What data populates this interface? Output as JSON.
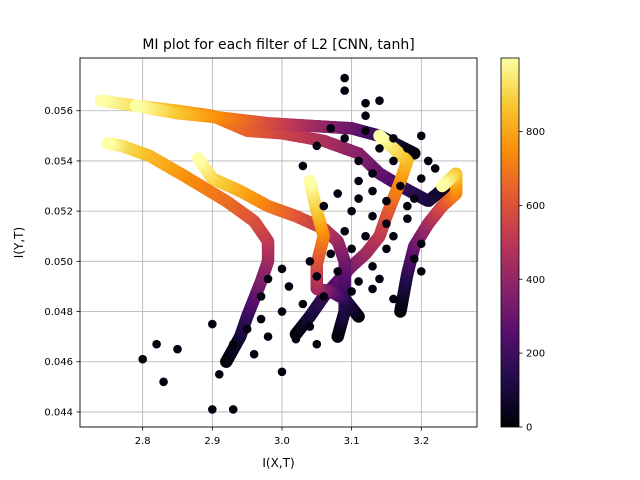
{
  "chart_data": {
    "type": "scatter",
    "title": "MI plot for each filter of L2 [CNN, tanh]",
    "xlabel": "I(X,T)",
    "ylabel": "I(Y,T)",
    "xlim": [
      2.71,
      3.28
    ],
    "ylim": [
      0.0434,
      0.0581
    ],
    "xticks": [
      2.8,
      2.9,
      3.0,
      3.1,
      3.2
    ],
    "xtick_labels": [
      "2.8",
      "2.9",
      "3.0",
      "3.1",
      "3.2"
    ],
    "yticks": [
      0.044,
      0.046,
      0.048,
      0.05,
      0.052,
      0.054,
      0.056
    ],
    "ytick_labels": [
      "0.044",
      "0.046",
      "0.048",
      "0.050",
      "0.052",
      "0.054",
      "0.056"
    ],
    "grid": true,
    "colormap": "inferno",
    "colorbar": {
      "range": [
        0,
        999
      ],
      "ticks": [
        0,
        200,
        400,
        600,
        800
      ],
      "tick_labels": [
        "0",
        "200",
        "400",
        "600",
        "800"
      ]
    },
    "trajectories": [
      {
        "points": [
          [
            3.25,
            0.0533
          ],
          [
            3.21,
            0.0524
          ],
          [
            3.17,
            0.053
          ],
          [
            3.14,
            0.0535
          ],
          [
            3.11,
            0.0543
          ],
          [
            3.06,
            0.0548
          ],
          [
            3.0,
            0.0551
          ],
          [
            2.95,
            0.0552
          ],
          [
            2.9,
            0.0558
          ],
          [
            2.85,
            0.056
          ],
          [
            2.79,
            0.0562
          ],
          [
            2.74,
            0.0564
          ]
        ]
      },
      {
        "points": [
          [
            3.19,
            0.0543
          ],
          [
            3.14,
            0.055
          ],
          [
            3.1,
            0.0553
          ],
          [
            3.04,
            0.0554
          ],
          [
            2.98,
            0.0555
          ],
          [
            2.92,
            0.0557
          ],
          [
            2.85,
            0.0559
          ],
          [
            2.79,
            0.0562
          ]
        ]
      },
      {
        "points": [
          [
            3.02,
            0.0471
          ],
          [
            3.04,
            0.0478
          ],
          [
            3.06,
            0.0486
          ],
          [
            3.08,
            0.0492
          ],
          [
            3.1,
            0.0498
          ],
          [
            3.12,
            0.0503
          ],
          [
            3.14,
            0.051
          ],
          [
            3.15,
            0.0518
          ],
          [
            3.16,
            0.0525
          ],
          [
            3.17,
            0.0532
          ],
          [
            3.18,
            0.054
          ],
          [
            3.16,
            0.0545
          ],
          [
            3.14,
            0.055
          ]
        ]
      },
      {
        "points": [
          [
            2.92,
            0.046
          ],
          [
            2.94,
            0.047
          ],
          [
            2.95,
            0.0478
          ],
          [
            2.96,
            0.0485
          ],
          [
            2.97,
            0.0492
          ],
          [
            2.98,
            0.05
          ],
          [
            2.98,
            0.0508
          ],
          [
            2.96,
            0.0516
          ],
          [
            2.92,
            0.0524
          ],
          [
            2.86,
            0.0534
          ],
          [
            2.81,
            0.0542
          ],
          [
            2.77,
            0.0546
          ],
          [
            2.75,
            0.0547
          ]
        ]
      },
      {
        "points": [
          [
            3.08,
            0.047
          ],
          [
            3.09,
            0.048
          ],
          [
            3.09,
            0.049
          ],
          [
            3.09,
            0.05
          ],
          [
            3.08,
            0.0508
          ],
          [
            3.06,
            0.0513
          ],
          [
            3.02,
            0.0518
          ],
          [
            2.98,
            0.0522
          ],
          [
            2.94,
            0.0528
          ],
          [
            2.9,
            0.0533
          ],
          [
            2.88,
            0.0541
          ]
        ]
      },
      {
        "points": [
          [
            3.11,
            0.0478
          ],
          [
            3.09,
            0.0485
          ],
          [
            3.07,
            0.0488
          ],
          [
            3.05,
            0.0489
          ],
          [
            3.05,
            0.0499
          ],
          [
            3.06,
            0.051
          ],
          [
            3.05,
            0.052
          ],
          [
            3.04,
            0.0532
          ]
        ]
      },
      {
        "points": [
          [
            3.17,
            0.048
          ],
          [
            3.18,
            0.0495
          ],
          [
            3.19,
            0.0506
          ],
          [
            3.21,
            0.0515
          ],
          [
            3.23,
            0.0522
          ],
          [
            3.25,
            0.0527
          ],
          [
            3.25,
            0.0535
          ],
          [
            3.23,
            0.053
          ]
        ]
      }
    ],
    "scatter_points": [
      [
        3.09,
        0.0573
      ],
      [
        3.09,
        0.0568
      ],
      [
        3.12,
        0.0563
      ],
      [
        3.14,
        0.0564
      ],
      [
        3.12,
        0.0558
      ],
      [
        3.09,
        0.0549
      ],
      [
        3.11,
        0.054
      ],
      [
        3.13,
        0.0535
      ],
      [
        3.05,
        0.0546
      ],
      [
        3.08,
        0.0527
      ],
      [
        3.06,
        0.0522
      ],
      [
        3.1,
        0.052
      ],
      [
        3.13,
        0.0518
      ],
      [
        3.15,
        0.0515
      ],
      [
        3.12,
        0.051
      ],
      [
        3.1,
        0.0505
      ],
      [
        3.07,
        0.0503
      ],
      [
        3.04,
        0.05
      ],
      [
        3.0,
        0.0497
      ],
      [
        2.98,
        0.0493
      ],
      [
        3.01,
        0.049
      ],
      [
        3.05,
        0.0494
      ],
      [
        3.08,
        0.0496
      ],
      [
        3.11,
        0.0492
      ],
      [
        3.13,
        0.0489
      ],
      [
        3.16,
        0.0485
      ],
      [
        3.03,
        0.0483
      ],
      [
        3.0,
        0.048
      ],
      [
        2.97,
        0.0477
      ],
      [
        2.95,
        0.0473
      ],
      [
        2.98,
        0.047
      ],
      [
        3.02,
        0.0469
      ],
      [
        3.05,
        0.0467
      ],
      [
        2.93,
        0.0467
      ],
      [
        2.96,
        0.0463
      ],
      [
        3.0,
        0.0456
      ],
      [
        2.9,
        0.0475
      ],
      [
        2.82,
        0.0467
      ],
      [
        2.8,
        0.0461
      ],
      [
        2.85,
        0.0465
      ],
      [
        2.83,
        0.0452
      ],
      [
        2.91,
        0.0455
      ],
      [
        2.9,
        0.0441
      ],
      [
        2.93,
        0.0441
      ],
      [
        3.2,
        0.0496
      ],
      [
        3.19,
        0.0501
      ],
      [
        3.2,
        0.0507
      ],
      [
        3.16,
        0.051
      ],
      [
        3.18,
        0.0517
      ],
      [
        3.15,
        0.0524
      ],
      [
        3.13,
        0.0528
      ],
      [
        3.17,
        0.053
      ],
      [
        3.2,
        0.0533
      ],
      [
        3.22,
        0.0537
      ],
      [
        3.16,
        0.054
      ],
      [
        3.18,
        0.0545
      ],
      [
        3.2,
        0.055
      ],
      [
        3.21,
        0.054
      ],
      [
        3.14,
        0.0545
      ],
      [
        3.12,
        0.0552
      ],
      [
        3.07,
        0.0553
      ],
      [
        3.11,
        0.0532
      ],
      [
        3.09,
        0.0512
      ],
      [
        3.06,
        0.0486
      ],
      [
        3.04,
        0.0474
      ],
      [
        2.97,
        0.0486
      ],
      [
        3.03,
        0.0538
      ],
      [
        3.13,
        0.0498
      ],
      [
        3.14,
        0.0493
      ],
      [
        3.1,
        0.0488
      ],
      [
        3.15,
        0.0505
      ],
      [
        3.18,
        0.0522
      ],
      [
        3.16,
        0.0549
      ],
      [
        3.19,
        0.0525
      ],
      [
        3.11,
        0.0525
      ]
    ]
  }
}
